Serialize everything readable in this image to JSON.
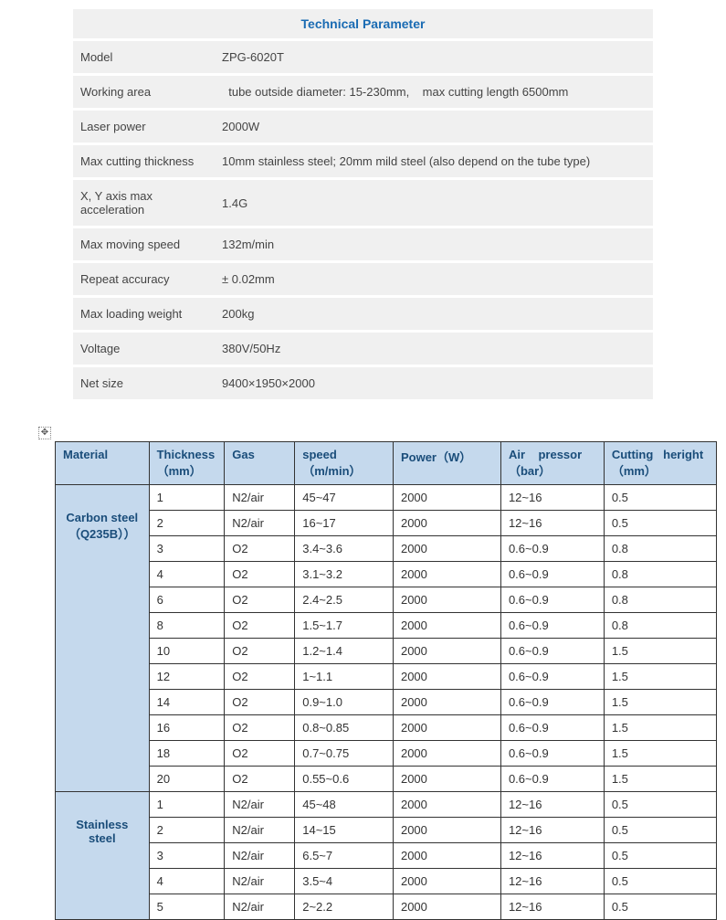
{
  "spec": {
    "title": "Technical Parameter",
    "rows": [
      {
        "label": "Model",
        "value": "ZPG-6020T"
      },
      {
        "label": "Working area",
        "value": "  tube outside diameter: 15-230mm,    max cutting length 6500mm"
      },
      {
        "label": "Laser power",
        "value": "2000W"
      },
      {
        "label": "Max cutting thickness",
        "value": "10mm stainless steel; 20mm mild steel (also depend on the tube type)"
      },
      {
        "label": "X, Y axis max acceleration",
        "value": "1.4G"
      },
      {
        "label": "Max moving speed",
        "value": "132m/min"
      },
      {
        "label": "Repeat accuracy",
        "value": "± 0.02mm"
      },
      {
        "label": "Max loading weight",
        "value": "200kg"
      },
      {
        "label": "Voltage",
        "value": "380V/50Hz"
      },
      {
        "label": "Net size",
        "value": "9400×1950×2000"
      }
    ]
  },
  "cutting": {
    "headers": {
      "material": "Material",
      "thickness": "Thickness",
      "thickness_unit": "（mm）",
      "gas": "Gas",
      "speed": "speed",
      "speed_unit": "（m/min）",
      "power": "Power（W）",
      "air": "Air    pressor",
      "air_unit": "（bar）",
      "cutheight": "Cutting   heright",
      "cutheight_unit": "（mm）"
    },
    "groups": [
      {
        "material": "Carbon steel",
        "material_sub": "（Q235B））",
        "rows": [
          {
            "thickness": "1",
            "gas": "N2/air",
            "speed": "45~47",
            "power": "2000",
            "air": "12~16",
            "cut": "0.5"
          },
          {
            "thickness": "2",
            "gas": "N2/air",
            "speed": "16~17",
            "power": "2000",
            "air": "12~16",
            "cut": "0.5"
          },
          {
            "thickness": "3",
            "gas": "O2",
            "speed": "3.4~3.6",
            "power": "2000",
            "air": "0.6~0.9",
            "cut": "0.8"
          },
          {
            "thickness": "4",
            "gas": "O2",
            "speed": "3.1~3.2",
            "power": "2000",
            "air": "0.6~0.9",
            "cut": "0.8"
          },
          {
            "thickness": "6",
            "gas": "O2",
            "speed": "2.4~2.5",
            "power": "2000",
            "air": "0.6~0.9",
            "cut": "0.8"
          },
          {
            "thickness": "8",
            "gas": "O2",
            "speed": "1.5~1.7",
            "power": "2000",
            "air": "0.6~0.9",
            "cut": "0.8"
          },
          {
            "thickness": "10",
            "gas": "O2",
            "speed": "1.2~1.4",
            "power": "2000",
            "air": "0.6~0.9",
            "cut": "1.5"
          },
          {
            "thickness": "12",
            "gas": "O2",
            "speed": "1~1.1",
            "power": "2000",
            "air": "0.6~0.9",
            "cut": "1.5"
          },
          {
            "thickness": "14",
            "gas": "O2",
            "speed": "0.9~1.0",
            "power": "2000",
            "air": "0.6~0.9",
            "cut": "1.5"
          },
          {
            "thickness": "16",
            "gas": "O2",
            "speed": "0.8~0.85",
            "power": "2000",
            "air": "0.6~0.9",
            "cut": "1.5"
          },
          {
            "thickness": "18",
            "gas": "O2",
            "speed": "0.7~0.75",
            "power": "2000",
            "air": "0.6~0.9",
            "cut": "1.5"
          },
          {
            "thickness": "20",
            "gas": "O2",
            "speed": "0.55~0.6",
            "power": "2000",
            "air": "0.6~0.9",
            "cut": "1.5"
          }
        ]
      },
      {
        "material": "Stainless steel",
        "material_sub": "",
        "rows": [
          {
            "thickness": "1",
            "gas": "N2/air",
            "speed": "45~48",
            "power": "2000",
            "air": "12~16",
            "cut": "0.5"
          },
          {
            "thickness": "2",
            "gas": "N2/air",
            "speed": "14~15",
            "power": "2000",
            "air": "12~16",
            "cut": "0.5"
          },
          {
            "thickness": "3",
            "gas": "N2/air",
            "speed": "6.5~7",
            "power": "2000",
            "air": "12~16",
            "cut": "0.5"
          },
          {
            "thickness": "4",
            "gas": "N2/air",
            "speed": "3.5~4",
            "power": "2000",
            "air": "12~16",
            "cut": "0.5"
          },
          {
            "thickness": "5",
            "gas": "N2/air",
            "speed": "2~2.2",
            "power": "2000",
            "air": "12~16",
            "cut": "0.5"
          }
        ]
      }
    ]
  },
  "colors": {
    "header_text": "#1a6bb3",
    "spec_bg": "#f0f0f0",
    "table_header_bg": "#c5d9ed",
    "table_header_text": "#1a4d7a",
    "border": "#333333"
  }
}
